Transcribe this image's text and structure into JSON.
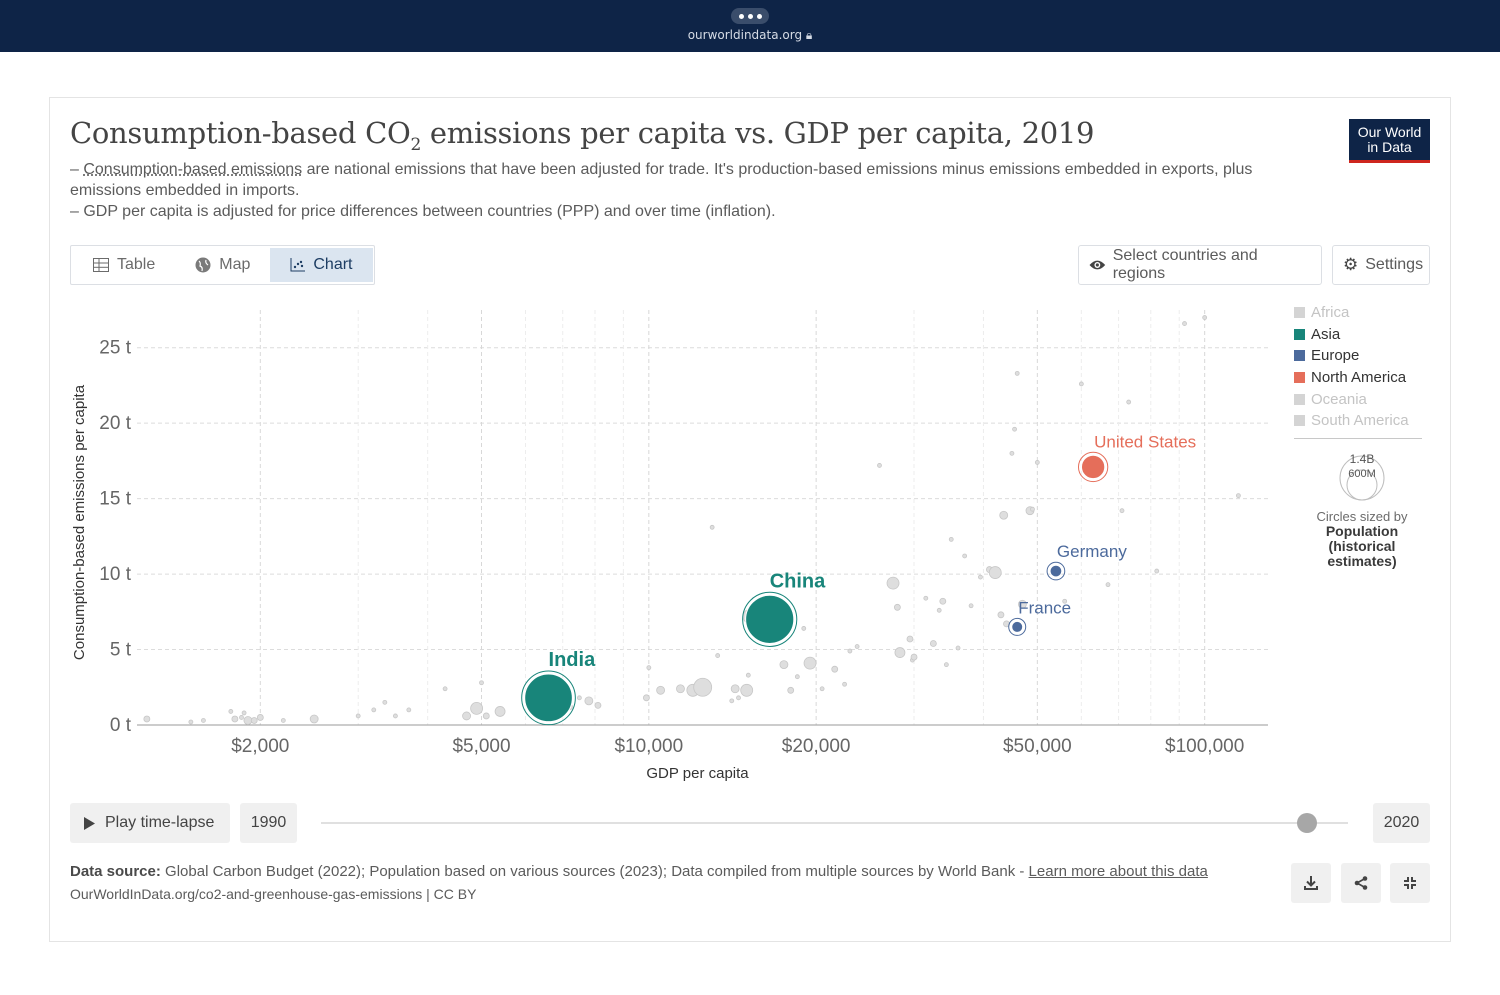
{
  "browser": {
    "url": "ourworldindata.org"
  },
  "header": {
    "title_main": "Consumption-based CO",
    "title_sub": "2",
    "title_rest": " emissions per capita vs. GDP per capita, 2019",
    "subtitle_line1_link": "Consumption-based emissions",
    "subtitle_line1_rest": " are national emissions that have been adjusted for trade. It's production-based emissions minus emissions embedded in exports, plus emissions embedded in imports.",
    "subtitle_line2": "GDP per capita is adjusted for price differences between countries (PPP) and over time (inflation).",
    "dash": "– ",
    "logo_line1": "Our World",
    "logo_line2": "in Data"
  },
  "tabs": [
    {
      "label": "Table",
      "icon": "table-icon"
    },
    {
      "label": "Map",
      "icon": "globe-icon"
    },
    {
      "label": "Chart",
      "icon": "scatter-icon",
      "active": true
    }
  ],
  "controls": {
    "select_label": "Select countries and regions",
    "settings_label": "Settings"
  },
  "legend": {
    "items": [
      {
        "label": "Africa",
        "color": "#d4d4d4",
        "active": false
      },
      {
        "label": "Asia",
        "color": "#18857a",
        "active": true
      },
      {
        "label": "Europe",
        "color": "#4c6a9c",
        "active": true
      },
      {
        "label": "North America",
        "color": "#e56e5a",
        "active": true
      },
      {
        "label": "Oceania",
        "color": "#d4d4d4",
        "active": false
      },
      {
        "label": "South America",
        "color": "#d4d4d4",
        "active": false
      }
    ],
    "size_big": "1.4B",
    "size_small": "600M",
    "size_caption": "Circles sized by",
    "size_variable": "Population (historical estimates)"
  },
  "chart_data": {
    "type": "scatter",
    "title": "Consumption-based CO₂ emissions per capita vs. GDP per capita, 2019",
    "xlabel": "GDP per capita",
    "ylabel": "Consumption-based emissions per capita",
    "xscale": "log",
    "xlim": [
      1200,
      130000
    ],
    "ylim": [
      0,
      27.5
    ],
    "xticks": [
      {
        "value": 2000,
        "label": "$2,000"
      },
      {
        "value": 5000,
        "label": "$5,000"
      },
      {
        "value": 10000,
        "label": "$10,000"
      },
      {
        "value": 20000,
        "label": "$20,000"
      },
      {
        "value": 50000,
        "label": "$50,000"
      },
      {
        "value": 100000,
        "label": "$100,000"
      }
    ],
    "x_minor_gridlines": [
      3000,
      4000,
      6000,
      7000,
      8000,
      9000,
      30000,
      40000,
      60000,
      70000,
      80000,
      90000
    ],
    "yticks": [
      {
        "value": 0,
        "label": "0 t"
      },
      {
        "value": 5,
        "label": "5 t"
      },
      {
        "value": 10,
        "label": "10 t"
      },
      {
        "value": 15,
        "label": "15 t"
      },
      {
        "value": 20,
        "label": "20 t"
      },
      {
        "value": 25,
        "label": "25 t"
      }
    ],
    "grid": true,
    "legend_position": "right",
    "highlighted": [
      {
        "name": "India",
        "x": 6600,
        "y": 1.8,
        "pop_m": 1380,
        "color": "#18857a"
      },
      {
        "name": "China",
        "x": 16500,
        "y": 7.0,
        "pop_m": 1410,
        "color": "#18857a"
      },
      {
        "name": "Germany",
        "x": 54000,
        "y": 10.2,
        "pop_m": 83,
        "color": "#4c6a9c"
      },
      {
        "name": "France",
        "x": 46000,
        "y": 6.5,
        "pop_m": 67,
        "color": "#4c6a9c"
      },
      {
        "name": "United States",
        "x": 63000,
        "y": 17.1,
        "pop_m": 330,
        "color": "#e56e5a"
      }
    ],
    "background_points": [
      [
        1250,
        0.4,
        3
      ],
      [
        1500,
        0.2,
        2
      ],
      [
        1580,
        0.3,
        2
      ],
      [
        1770,
        0.9,
        2
      ],
      [
        1800,
        0.4,
        3
      ],
      [
        1850,
        0.5,
        2
      ],
      [
        1870,
        0.8,
        2
      ],
      [
        1900,
        0.3,
        4
      ],
      [
        1950,
        0.3,
        3
      ],
      [
        2000,
        0.5,
        3
      ],
      [
        2200,
        0.3,
        2
      ],
      [
        2500,
        0.4,
        4
      ],
      [
        3000,
        0.6,
        2
      ],
      [
        3200,
        1.0,
        2
      ],
      [
        3350,
        1.5,
        2
      ],
      [
        3500,
        0.6,
        2
      ],
      [
        3700,
        1.0,
        2
      ],
      [
        4300,
        2.4,
        2
      ],
      [
        4700,
        0.6,
        4
      ],
      [
        4900,
        1.1,
        6
      ],
      [
        5000,
        2.8,
        2
      ],
      [
        5100,
        0.6,
        3
      ],
      [
        5400,
        0.9,
        5
      ],
      [
        7200,
        1.2,
        3
      ],
      [
        7500,
        1.8,
        2
      ],
      [
        7800,
        1.6,
        4
      ],
      [
        8100,
        1.3,
        3
      ],
      [
        9900,
        1.8,
        3
      ],
      [
        10000,
        3.8,
        2
      ],
      [
        10500,
        2.3,
        4
      ],
      [
        11400,
        2.4,
        4
      ],
      [
        12000,
        2.3,
        6
      ],
      [
        12500,
        2.5,
        9
      ],
      [
        13000,
        13.1,
        2
      ],
      [
        13300,
        4.6,
        2
      ],
      [
        14100,
        1.6,
        2
      ],
      [
        14300,
        2.4,
        4
      ],
      [
        14500,
        1.8,
        2
      ],
      [
        15000,
        2.3,
        6
      ],
      [
        15100,
        3.3,
        2
      ],
      [
        15200,
        7.2,
        7
      ],
      [
        19000,
        6.4,
        2
      ],
      [
        17500,
        4.0,
        4
      ],
      [
        18000,
        2.3,
        3
      ],
      [
        18500,
        3.2,
        2
      ],
      [
        19500,
        4.1,
        6
      ],
      [
        20500,
        2.4,
        2
      ],
      [
        21600,
        3.7,
        3
      ],
      [
        22500,
        2.7,
        2
      ],
      [
        23000,
        4.9,
        2
      ],
      [
        23700,
        5.2,
        2
      ],
      [
        26000,
        17.2,
        2
      ],
      [
        27500,
        9.4,
        6
      ],
      [
        28000,
        7.8,
        3
      ],
      [
        28300,
        4.8,
        5
      ],
      [
        29500,
        5.7,
        3
      ],
      [
        29800,
        4.3,
        2
      ],
      [
        30000,
        4.5,
        3
      ],
      [
        31500,
        8.4,
        2
      ],
      [
        32500,
        5.4,
        3
      ],
      [
        33300,
        7.6,
        2
      ],
      [
        33800,
        8.2,
        3
      ],
      [
        34300,
        4.0,
        2
      ],
      [
        35000,
        12.3,
        2
      ],
      [
        36000,
        5.1,
        2
      ],
      [
        37000,
        11.2,
        2
      ],
      [
        38000,
        7.9,
        2
      ],
      [
        39500,
        9.8,
        2
      ],
      [
        41000,
        10.3,
        3
      ],
      [
        42000,
        10.1,
        6
      ],
      [
        43000,
        7.3,
        3
      ],
      [
        43500,
        13.9,
        4
      ],
      [
        44000,
        6.7,
        3
      ],
      [
        45000,
        18.0,
        2
      ],
      [
        45500,
        19.6,
        2
      ],
      [
        46000,
        23.3,
        2
      ],
      [
        47000,
        8.0,
        4
      ],
      [
        48500,
        14.2,
        4
      ],
      [
        49000,
        14.3,
        2
      ],
      [
        50000,
        17.4,
        2
      ],
      [
        56000,
        8.2,
        2
      ],
      [
        60000,
        22.6,
        2
      ],
      [
        67000,
        9.3,
        2
      ],
      [
        71000,
        14.2,
        2
      ],
      [
        73000,
        21.4,
        2
      ],
      [
        82000,
        10.2,
        2
      ],
      [
        92000,
        26.6,
        2
      ],
      [
        100000,
        27.0,
        2
      ],
      [
        115000,
        15.2,
        2
      ]
    ]
  },
  "timeline": {
    "play_label": "Play time-lapse",
    "start_year": "1990",
    "end_year": "2020",
    "position": 0.96
  },
  "footer": {
    "source_label": "Data source:",
    "source_text": " Global Carbon Budget (2022); Population based on various sources (2023); Data compiled from multiple sources by World Bank - ",
    "learn_more": "Learn more about this data",
    "url_line": "OurWorldInData.org/co2-and-greenhouse-gas-emissions | CC BY"
  }
}
